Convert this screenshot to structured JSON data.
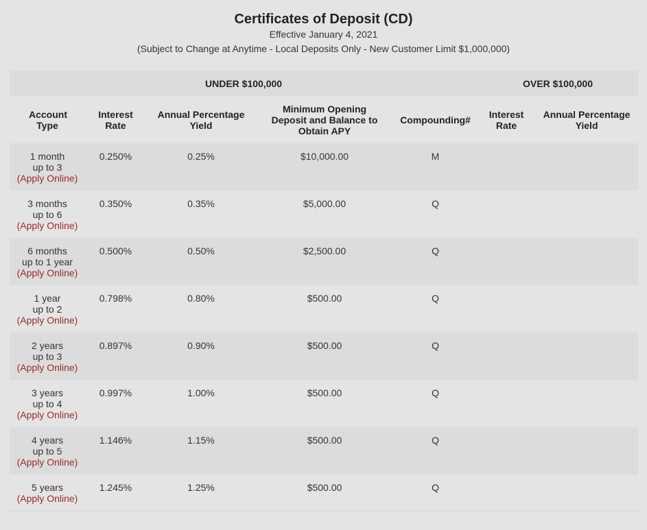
{
  "header": {
    "title": "Certificates of Deposit (CD)",
    "effective": "Effective January 4, 2021",
    "note": "(Subject to Change at Anytime - Local Deposits Only - New Customer Limit $1,000,000)"
  },
  "table": {
    "groups": {
      "under": "UNDER $100,000",
      "over": "OVER $100,000"
    },
    "columns": {
      "account_type": "Account Type",
      "interest_rate": "Interest Rate",
      "apy": "Annual Percentage Yield",
      "min_deposit": "Minimum Opening Deposit and Balance to Obtain APY",
      "compounding": "Compounding#",
      "over_interest_rate": "Interest Rate",
      "over_apy": "Annual Percentage Yield"
    },
    "apply_label": "(Apply Online)",
    "rows": [
      {
        "term1": "1 month",
        "term2": "up to 3",
        "rate": "0.250%",
        "apy": "0.25%",
        "min": "$10,000.00",
        "comp": "M"
      },
      {
        "term1": "3 months",
        "term2": "up to 6",
        "rate": "0.350%",
        "apy": "0.35%",
        "min": "$5,000.00",
        "comp": "Q"
      },
      {
        "term1": "6 months",
        "term2": "up to 1 year",
        "rate": "0.500%",
        "apy": "0.50%",
        "min": "$2,500.00",
        "comp": "Q"
      },
      {
        "term1": "1 year",
        "term2": "up to 2",
        "rate": "0.798%",
        "apy": "0.80%",
        "min": "$500.00",
        "comp": "Q"
      },
      {
        "term1": "2 years",
        "term2": "up to 3",
        "rate": "0.897%",
        "apy": "0.90%",
        "min": "$500.00",
        "comp": "Q"
      },
      {
        "term1": "3 years",
        "term2": "up to 4",
        "rate": "0.997%",
        "apy": "1.00%",
        "min": "$500.00",
        "comp": "Q"
      },
      {
        "term1": "4 years",
        "term2": "up to 5",
        "rate": "1.146%",
        "apy": "1.15%",
        "min": "$500.00",
        "comp": "Q"
      },
      {
        "term1": "5 years",
        "term2": "",
        "rate": "1.245%",
        "apy": "1.25%",
        "min": "$500.00",
        "comp": "Q"
      }
    ]
  }
}
